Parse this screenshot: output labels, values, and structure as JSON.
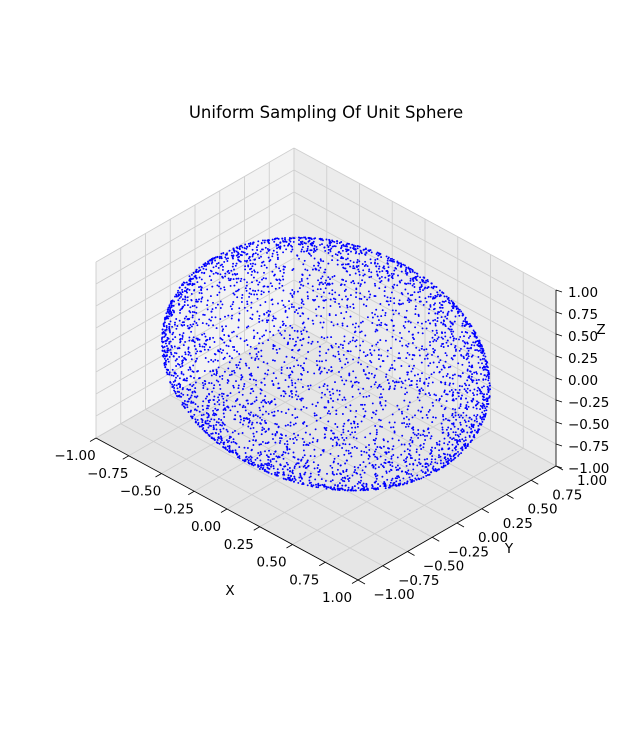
{
  "chart_data": {
    "type": "scatter",
    "projection": "3d",
    "title": "Uniform Sampling Of Unit Sphere",
    "xlabel": "X",
    "ylabel": "Y",
    "zlabel": "Z",
    "xlim": [
      -1.0,
      1.0
    ],
    "ylim": [
      -1.0,
      1.0
    ],
    "zlim": [
      -1.0,
      1.0
    ],
    "xticks": [
      "−1.00",
      "−0.75",
      "−0.50",
      "−0.25",
      "0.00",
      "0.25",
      "0.50",
      "0.75",
      "1.00"
    ],
    "yticks": [
      "−1.00",
      "−0.75",
      "−0.50",
      "−0.25",
      "0.00",
      "0.25",
      "0.50",
      "0.75",
      "1.00"
    ],
    "zticks": [
      "−1.00",
      "−0.75",
      "−0.50",
      "−0.25",
      "0.00",
      "0.25",
      "0.50",
      "0.75",
      "1.00"
    ],
    "grid": true,
    "series": [
      {
        "surface": "unit sphere",
        "radius": 1.0,
        "distribution": "uniform",
        "approx_points": 4000,
        "marker": "dot",
        "color": "#0000ff"
      }
    ]
  }
}
